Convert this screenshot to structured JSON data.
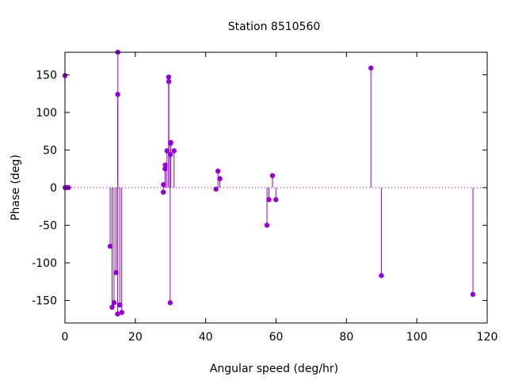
{
  "chart_data": {
    "type": "scatter",
    "style": "impulses-with-points",
    "title": "Station 8510560",
    "xlabel": "Angular speed (deg/hr)",
    "ylabel": "Phase (deg)",
    "xlim": [
      0,
      120
    ],
    "ylim": [
      -180,
      180
    ],
    "xticks": [
      0,
      20,
      40,
      60,
      80,
      100,
      120
    ],
    "yticks": [
      -150,
      -100,
      -50,
      0,
      50,
      100,
      150
    ],
    "grid": false,
    "zero_line": true,
    "color": "#9400d3",
    "points": [
      {
        "x": 0.0,
        "y": 149
      },
      {
        "x": 0.04,
        "y": 0
      },
      {
        "x": 0.08,
        "y": 0
      },
      {
        "x": 0.5,
        "y": 0
      },
      {
        "x": 0.55,
        "y": 0
      },
      {
        "x": 1.0,
        "y": 0
      },
      {
        "x": 12.85,
        "y": -78
      },
      {
        "x": 13.4,
        "y": -159
      },
      {
        "x": 13.94,
        "y": -153
      },
      {
        "x": 14.5,
        "y": -113
      },
      {
        "x": 14.96,
        "y": -168
      },
      {
        "x": 15.04,
        "y": 180
      },
      {
        "x": 15.0,
        "y": 124
      },
      {
        "x": 15.59,
        "y": -156
      },
      {
        "x": 16.14,
        "y": -166
      },
      {
        "x": 27.97,
        "y": -6
      },
      {
        "x": 28.0,
        "y": 4
      },
      {
        "x": 28.44,
        "y": 25
      },
      {
        "x": 28.51,
        "y": 30
      },
      {
        "x": 28.99,
        "y": 49
      },
      {
        "x": 29.46,
        "y": 147
      },
      {
        "x": 29.53,
        "y": 141
      },
      {
        "x": 29.96,
        "y": 44
      },
      {
        "x": 30.0,
        "y": 59
      },
      {
        "x": 30.08,
        "y": 60
      },
      {
        "x": 29.9,
        "y": -153
      },
      {
        "x": 31.02,
        "y": 49
      },
      {
        "x": 42.93,
        "y": -2
      },
      {
        "x": 43.48,
        "y": 22
      },
      {
        "x": 44.03,
        "y": 12
      },
      {
        "x": 57.42,
        "y": -50
      },
      {
        "x": 57.97,
        "y": -16
      },
      {
        "x": 58.98,
        "y": 16
      },
      {
        "x": 59.95,
        "y": -16
      },
      {
        "x": 86.96,
        "y": 159
      },
      {
        "x": 89.92,
        "y": -117
      },
      {
        "x": 115.94,
        "y": -142
      }
    ]
  }
}
